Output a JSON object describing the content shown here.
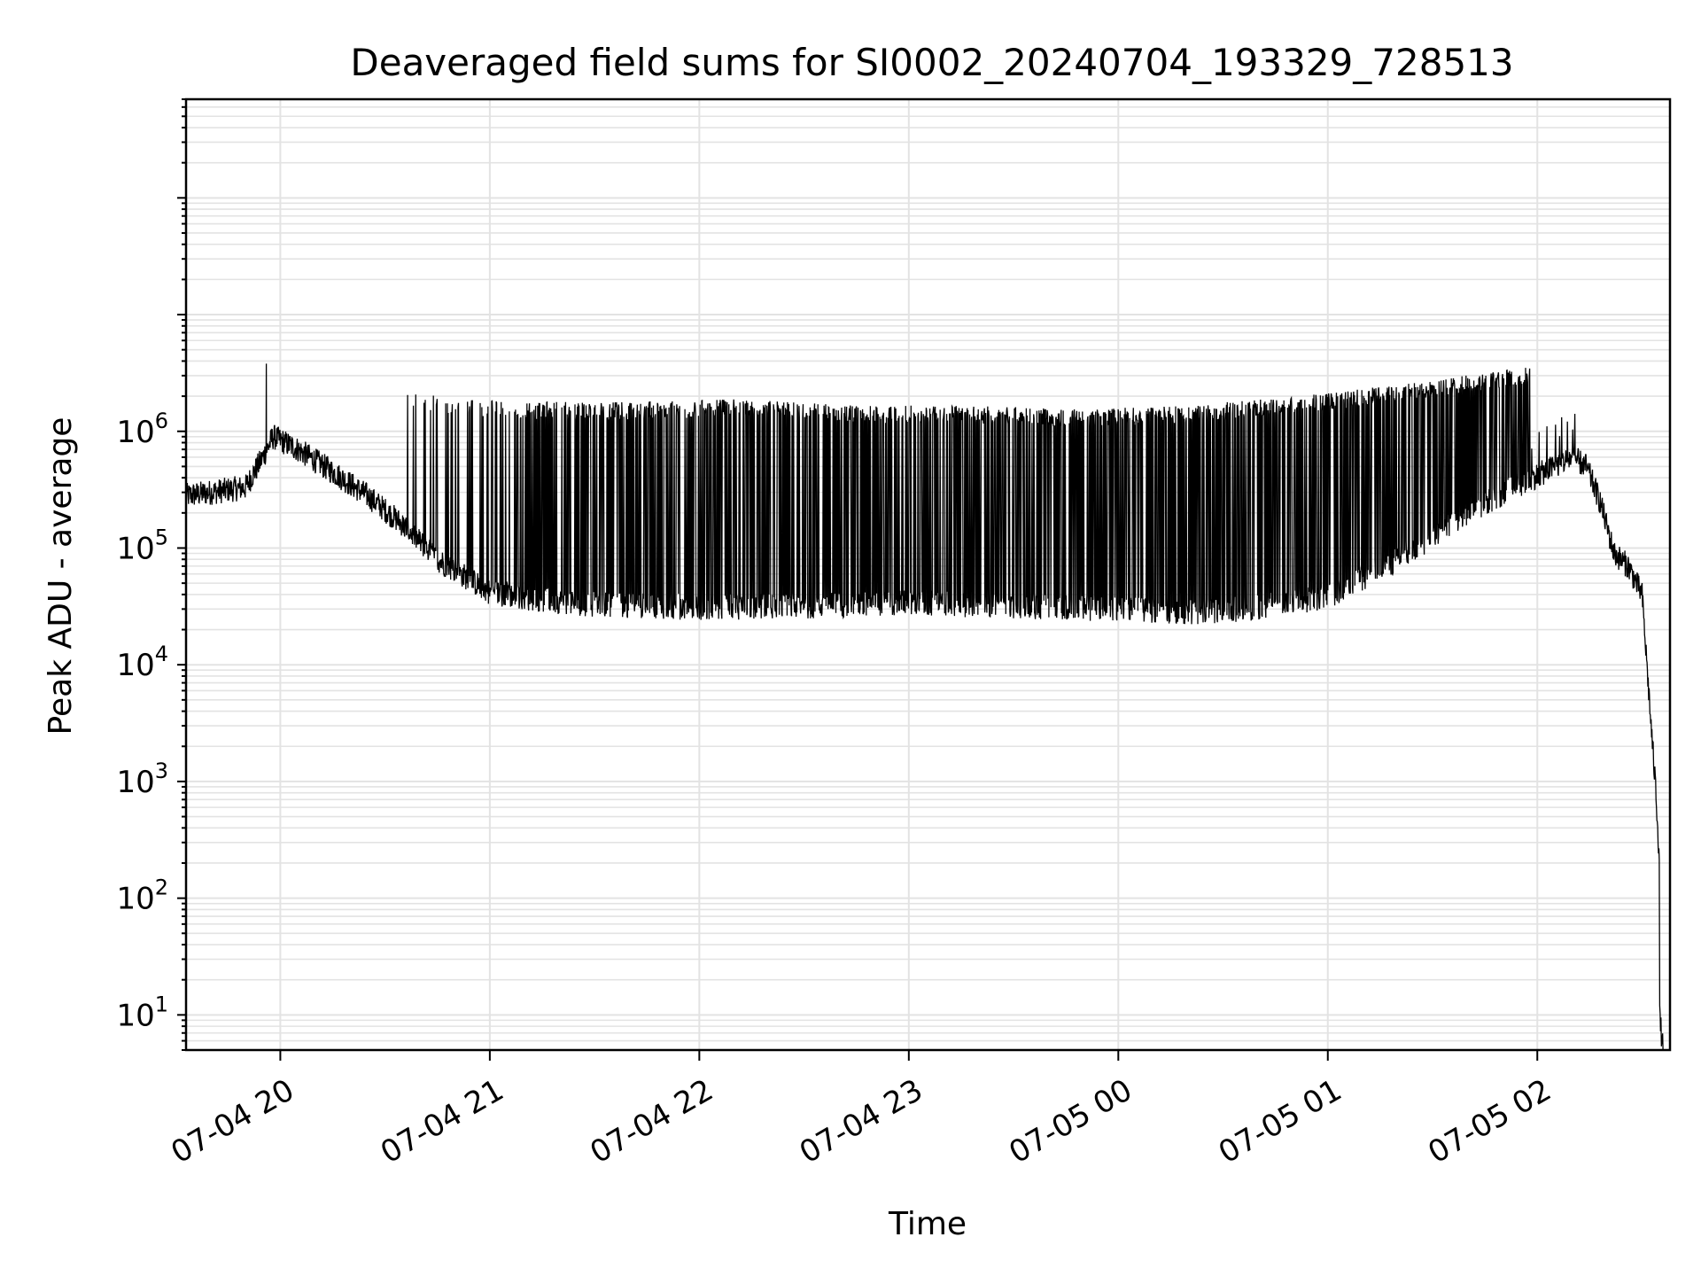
{
  "chart_data": {
    "type": "line",
    "title": "Deaveraged field sums for SI0002_20240704_193329_728513",
    "xlabel": "Time",
    "ylabel": "Peak ADU - average",
    "yscale": "log",
    "ylim": [
      5,
      700000000
    ],
    "xlim": [
      "2024-07-04 19:33",
      "2024-07-05 02:38"
    ],
    "grid": true,
    "x_ticks": [
      {
        "t": "2024-07-04 20:00",
        "label": "07-04 20"
      },
      {
        "t": "2024-07-04 21:00",
        "label": "07-04 21"
      },
      {
        "t": "2024-07-04 22:00",
        "label": "07-04 22"
      },
      {
        "t": "2024-07-04 23:00",
        "label": "07-04 23"
      },
      {
        "t": "2024-07-05 00:00",
        "label": "07-05 00"
      },
      {
        "t": "2024-07-05 01:00",
        "label": "07-05 01"
      },
      {
        "t": "2024-07-05 02:00",
        "label": "07-05 02"
      }
    ],
    "y_ticks": [
      {
        "value": 10,
        "base": "10",
        "exp": "1"
      },
      {
        "value": 100,
        "base": "10",
        "exp": "2"
      },
      {
        "value": 1000,
        "base": "10",
        "exp": "3"
      },
      {
        "value": 10000,
        "base": "10",
        "exp": "4"
      },
      {
        "value": 100000,
        "base": "10",
        "exp": "5"
      },
      {
        "value": 1000000,
        "base": "10",
        "exp": "6"
      }
    ],
    "baseline": {
      "x": [
        "2024-07-04 19:33",
        "2024-07-04 19:40",
        "2024-07-04 19:50",
        "2024-07-04 19:55",
        "2024-07-04 19:58",
        "2024-07-04 20:05",
        "2024-07-04 20:15",
        "2024-07-04 20:25",
        "2024-07-04 20:35",
        "2024-07-04 20:45",
        "2024-07-04 21:00",
        "2024-07-04 21:15",
        "2024-07-04 21:30",
        "2024-07-04 22:00",
        "2024-07-04 22:30",
        "2024-07-04 23:00",
        "2024-07-04 23:30",
        "2024-07-05 00:00",
        "2024-07-05 00:20",
        "2024-07-05 00:40",
        "2024-07-05 01:00",
        "2024-07-05 01:20",
        "2024-07-05 01:40",
        "2024-07-05 01:55",
        "2024-07-05 02:05",
        "2024-07-05 02:10",
        "2024-07-05 02:14",
        "2024-07-05 02:18",
        "2024-07-05 02:22",
        "2024-07-05 02:26",
        "2024-07-05 02:30",
        "2024-07-05 02:33",
        "2024-07-05 02:34",
        "2024-07-05 02:35",
        "2024-07-05 02:35",
        "2024-07-05 02:36"
      ],
      "y": [
        280000,
        300000,
        330000,
        600000,
        900000,
        700000,
        450000,
        280000,
        160000,
        80000,
        42000,
        36000,
        33000,
        31000,
        32000,
        34000,
        32000,
        30000,
        28000,
        31000,
        38000,
        80000,
        200000,
        350000,
        500000,
        600000,
        500000,
        250000,
        90000,
        70000,
        40000,
        2000,
        800,
        200,
        10,
        5
      ]
    },
    "spikes": {
      "start": "2024-07-04 20:35",
      "end": "2024-07-05 01:58",
      "peak_values": [
        1800000,
        1500000,
        1500000,
        1600000,
        1400000,
        1400000,
        1300000,
        1400000,
        1700000,
        2200000,
        3000000
      ],
      "count": 520
    },
    "notable_peaks": [
      {
        "x": "2024-07-04 19:56",
        "y": 3800000
      },
      {
        "x": "2024-07-05 01:55",
        "y": 3000000
      }
    ]
  }
}
